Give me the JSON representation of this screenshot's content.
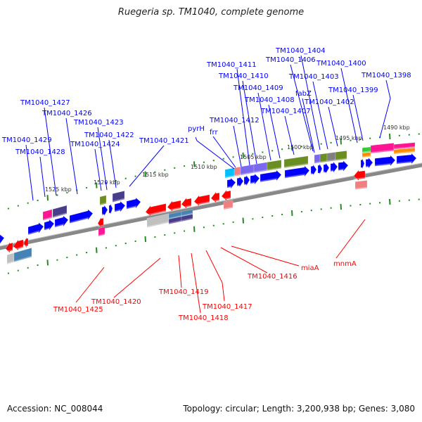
{
  "title": "Ruegeria sp. TM1040, complete genome",
  "footer": {
    "accession": "Accession: NC_008044",
    "topology": "Topology: circular; Length: 3,200,938 bp; Genes: 3,080"
  },
  "ticks": [
    "1525 kbp",
    "1520 kbp",
    "1515 kbp",
    "1510 kbp",
    "1505 kbp",
    "1500 kbp",
    "1495 kbp",
    "1490 kbp"
  ],
  "forward_genes": [
    "TM1040_1427",
    "TM1040_1426",
    "TM1040_1423",
    "TM1040_1422",
    "TM1040_1424",
    "TM1040_1429",
    "TM1040_1428",
    "TM1040_1421",
    "pyrH",
    "frr",
    "TM1040_1412",
    "TM1040_1411",
    "TM1040_1410",
    "TM1040_1409",
    "TM1040_1408",
    "TM1040_1407",
    "TM1040_1406",
    "TM1040_1404",
    "fabZ",
    "TM1040_1403",
    "TM1040_1402",
    "TM1040_1400",
    "TM1040_1399",
    "TM1040_1398"
  ],
  "reverse_genes": [
    "TM1040_1425",
    "TM1040_1420",
    "TM1040_1419",
    "TM1040_1418",
    "TM1040_1417",
    "TM1040_1416",
    "miaA",
    "mnmA"
  ],
  "colors": {
    "forward": "#0000ff",
    "reverse": "#ff0000",
    "tick": "#228b22",
    "backbone": "#808080"
  }
}
